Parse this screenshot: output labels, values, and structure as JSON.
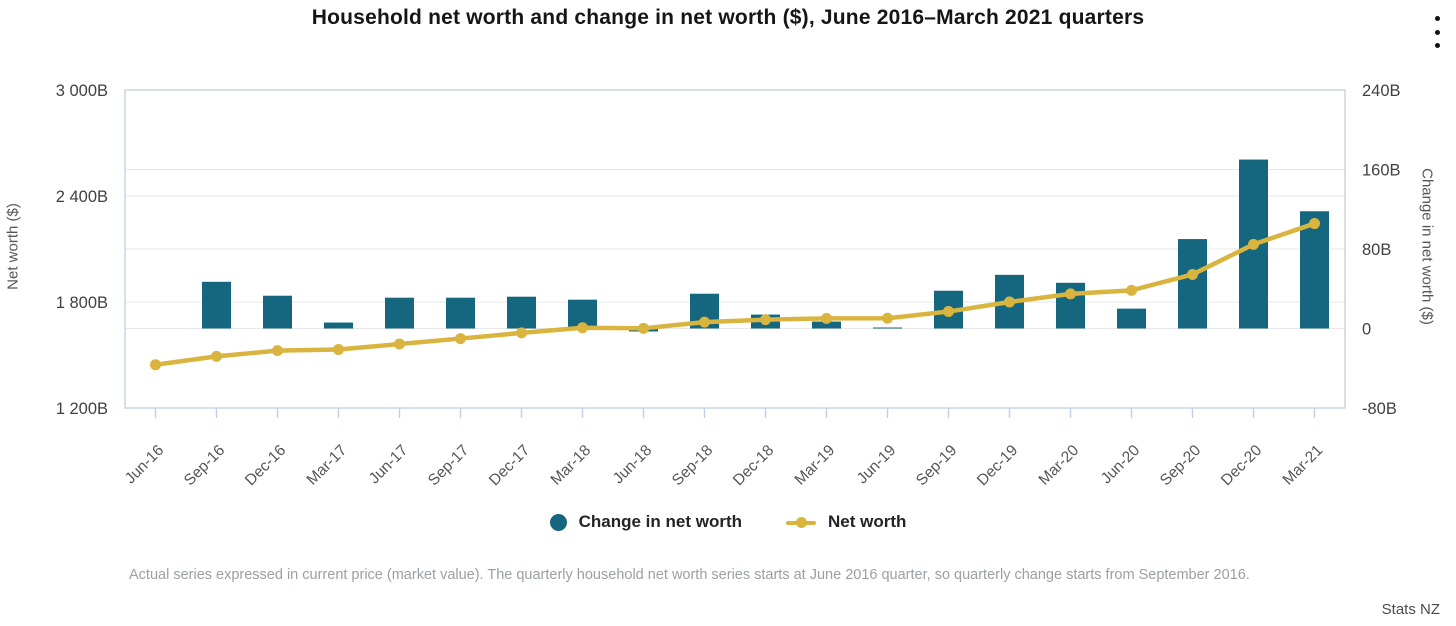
{
  "header": {
    "title": "Household net worth and change in net worth ($), June 2016–March 2021 quarters",
    "menu_icon": "kebab-menu"
  },
  "chart_data": {
    "type": "combo-bar-line",
    "title": "Household net worth and change in net worth ($), June 2016–March 2021 quarters",
    "grid": true,
    "legend_position": "bottom",
    "categories": [
      "Jun-16",
      "Sep-16",
      "Dec-16",
      "Mar-17",
      "Jun-17",
      "Sep-17",
      "Dec-17",
      "Mar-18",
      "Jun-18",
      "Sep-18",
      "Dec-18",
      "Mar-19",
      "Jun-19",
      "Sep-19",
      "Dec-19",
      "Mar-20",
      "Jun-20",
      "Sep-20",
      "Dec-20",
      "Mar-21"
    ],
    "series": [
      {
        "name": "Change in net worth",
        "type": "bar",
        "axis": "right",
        "color": "#15677f",
        "values": [
          null,
          47,
          33,
          6,
          31,
          31,
          32,
          29,
          -3,
          35,
          14,
          7,
          1,
          38,
          54,
          46,
          20,
          90,
          170,
          118
        ]
      },
      {
        "name": "Net worth",
        "type": "line",
        "axis": "left",
        "color": "#d9b43e",
        "values": [
          1445,
          1492,
          1525,
          1531,
          1562,
          1593,
          1625,
          1654,
          1651,
          1686,
          1700,
          1707,
          1708,
          1746,
          1800,
          1846,
          1866,
          1956,
          2126,
          2244
        ]
      }
    ],
    "left_axis": {
      "label": "Net worth ($)",
      "unit": "B",
      "min": 1200,
      "max": 3000,
      "tick_values": [
        3000,
        2400,
        1800,
        1200
      ],
      "tick_labels": [
        "3 000B",
        "2 400B",
        "1 800B",
        "1 200B"
      ]
    },
    "right_axis": {
      "label": "Change in net worth ($)",
      "unit": "B",
      "min": -80,
      "max": 240,
      "tick_values": [
        240,
        160,
        80,
        0,
        -80
      ],
      "tick_labels": [
        "240B",
        "160B",
        "80B",
        "0",
        "-80B"
      ]
    },
    "colors": {
      "bar": "#15677f",
      "line": "#d9b43e",
      "grid": "#e7e7e7",
      "plot_border": "#c9d6e4",
      "tick": "#c2d1e6",
      "axis_text": "#54565b"
    }
  },
  "legend": {
    "items": [
      {
        "label": "Change in net worth",
        "color": "#15677f",
        "marker": "circle"
      },
      {
        "label": "Net worth",
        "color": "#d9b43e",
        "marker": "line-dot"
      }
    ]
  },
  "footnote": "Actual series expressed in current price (market value). The quarterly household net worth series starts at June 2016 quarter, so quarterly change starts from September 2016.",
  "source": "Stats NZ"
}
